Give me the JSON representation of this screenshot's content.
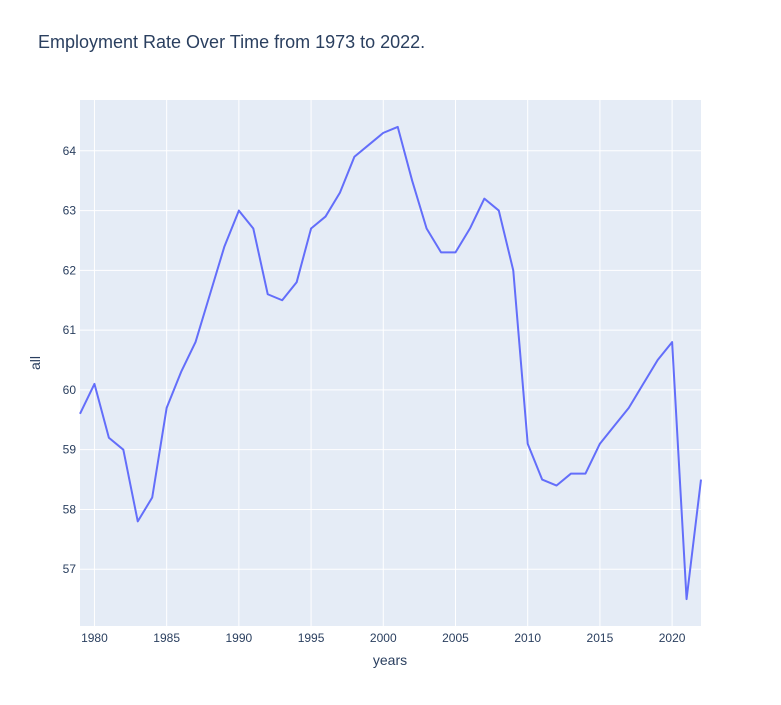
{
  "chart_data": {
    "type": "line",
    "title": "Employment Rate Over Time from 1973 to 2022.",
    "xlabel": "years",
    "ylabel": "all",
    "xlim": [
      1979,
      2022
    ],
    "ylim": [
      56.05,
      64.85
    ],
    "x_ticks": [
      1980,
      1985,
      1990,
      1995,
      2000,
      2005,
      2010,
      2015,
      2020
    ],
    "y_ticks": [
      57,
      58,
      59,
      60,
      61,
      62,
      63,
      64
    ],
    "grid": true,
    "line_color": "#636efa",
    "plot_bg": "#e5ecf6",
    "series": [
      {
        "x": [
          1979,
          1980,
          1981,
          1982,
          1983,
          1984,
          1985,
          1986,
          1987,
          1988,
          1989,
          1990,
          1991,
          1992,
          1993,
          1994,
          1995,
          1996,
          1997,
          1998,
          1999,
          2000,
          2001,
          2002,
          2003,
          2004,
          2005,
          2006,
          2007,
          2008,
          2009,
          2010,
          2011,
          2012,
          2013,
          2014,
          2015,
          2016,
          2017,
          2018,
          2019,
          2020,
          2021,
          2022
        ],
        "values": [
          59.6,
          60.1,
          59.2,
          59.0,
          57.8,
          58.2,
          59.7,
          60.3,
          60.8,
          61.6,
          62.4,
          63.0,
          62.7,
          61.6,
          61.5,
          61.8,
          62.7,
          62.9,
          63.3,
          63.9,
          64.1,
          64.3,
          64.4,
          63.5,
          62.7,
          62.3,
          62.3,
          62.7,
          63.2,
          63.0,
          62.0,
          59.1,
          58.5,
          58.4,
          58.6,
          58.6,
          59.1,
          59.4,
          59.7,
          60.1,
          60.5,
          60.8,
          56.5,
          58.5
        ]
      }
    ]
  }
}
